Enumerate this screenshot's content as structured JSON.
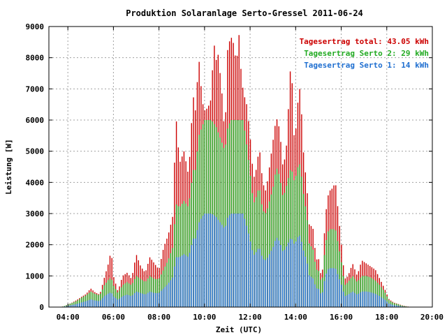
{
  "chart_data": {
    "type": "bar",
    "title": "Produktion Solaranlage Serto-Gressel 2011-06-24",
    "xlabel": "Zeit (UTC)",
    "ylabel": "Leistung [W]",
    "xlim": [
      3.167,
      20.0
    ],
    "ylim": [
      0,
      9000
    ],
    "grid": true,
    "legend_position": "top-right",
    "yticks": [
      {
        "value": 0,
        "label": "0"
      },
      {
        "value": 1000,
        "label": "1000"
      },
      {
        "value": 2000,
        "label": "2000"
      },
      {
        "value": 3000,
        "label": "3000"
      },
      {
        "value": 4000,
        "label": "4000"
      },
      {
        "value": 5000,
        "label": "5000"
      },
      {
        "value": 6000,
        "label": "6000"
      },
      {
        "value": 7000,
        "label": "7000"
      },
      {
        "value": 8000,
        "label": "8000"
      },
      {
        "value": 9000,
        "label": "9000"
      }
    ],
    "xticks": [
      {
        "value": 4,
        "label": "04:00"
      },
      {
        "value": 6,
        "label": "06:00"
      },
      {
        "value": 8,
        "label": "08:00"
      },
      {
        "value": 10,
        "label": "10:00"
      },
      {
        "value": 12,
        "label": "12:00"
      },
      {
        "value": 14,
        "label": "14:00"
      },
      {
        "value": 16,
        "label": "16:00"
      },
      {
        "value": 18,
        "label": "18:00"
      },
      {
        "value": 20,
        "label": "20:00"
      }
    ],
    "legend": [
      {
        "label": "Tagesertrag total: 43.05 kWh",
        "color": "#cc0000"
      },
      {
        "label": "Tagesertrag Serto 2: 29 kWh",
        "color": "#22aa22"
      },
      {
        "label": "Tagesertrag Serto 1: 14 kWh",
        "color": "#1f6fd0"
      }
    ],
    "series": [
      {
        "name": "Tagesertrag total: 43.05 kWh",
        "color": "#cc0000",
        "points": [
          [
            3.6,
            0
          ],
          [
            3.8,
            20
          ],
          [
            4.0,
            80
          ],
          [
            4.2,
            150
          ],
          [
            4.4,
            230
          ],
          [
            4.6,
            330
          ],
          [
            4.8,
            420
          ],
          [
            5.0,
            600
          ],
          [
            5.2,
            470
          ],
          [
            5.4,
            400
          ],
          [
            5.6,
            940
          ],
          [
            5.8,
            1450
          ],
          [
            5.9,
            1850
          ],
          [
            6.0,
            1000
          ],
          [
            6.2,
            500
          ],
          [
            6.4,
            1000
          ],
          [
            6.6,
            1100
          ],
          [
            6.8,
            900
          ],
          [
            7.0,
            1700
          ],
          [
            7.2,
            1300
          ],
          [
            7.4,
            1100
          ],
          [
            7.6,
            1600
          ],
          [
            7.8,
            1400
          ],
          [
            8.0,
            1200
          ],
          [
            8.2,
            1900
          ],
          [
            8.4,
            2300
          ],
          [
            8.6,
            2900
          ],
          [
            8.75,
            6100
          ],
          [
            8.9,
            4600
          ],
          [
            9.1,
            5000
          ],
          [
            9.3,
            4200
          ],
          [
            9.5,
            6800
          ],
          [
            9.6,
            6300
          ],
          [
            9.75,
            8000
          ],
          [
            9.9,
            6600
          ],
          [
            10.0,
            6300
          ],
          [
            10.15,
            6400
          ],
          [
            10.3,
            6700
          ],
          [
            10.4,
            8600
          ],
          [
            10.5,
            7900
          ],
          [
            10.6,
            8100
          ],
          [
            10.75,
            7000
          ],
          [
            10.9,
            5400
          ],
          [
            11.0,
            8200
          ],
          [
            11.15,
            8700
          ],
          [
            11.3,
            8400
          ],
          [
            11.4,
            7700
          ],
          [
            11.5,
            8900
          ],
          [
            11.6,
            7600
          ],
          [
            11.7,
            6900
          ],
          [
            11.85,
            6500
          ],
          [
            12.0,
            5500
          ],
          [
            12.15,
            4100
          ],
          [
            12.3,
            4500
          ],
          [
            12.4,
            5200
          ],
          [
            12.55,
            4000
          ],
          [
            12.7,
            3700
          ],
          [
            12.85,
            4500
          ],
          [
            13.0,
            5300
          ],
          [
            13.15,
            6100
          ],
          [
            13.3,
            5700
          ],
          [
            13.45,
            4400
          ],
          [
            13.6,
            5200
          ],
          [
            13.8,
            8100
          ],
          [
            13.95,
            5100
          ],
          [
            14.1,
            6600
          ],
          [
            14.2,
            7100
          ],
          [
            14.35,
            4900
          ],
          [
            14.5,
            3800
          ],
          [
            14.6,
            2600
          ],
          [
            14.75,
            2600
          ],
          [
            14.9,
            1500
          ],
          [
            15.0,
            1600
          ],
          [
            15.15,
            800
          ],
          [
            15.3,
            2900
          ],
          [
            15.45,
            3700
          ],
          [
            15.6,
            3800
          ],
          [
            15.75,
            4000
          ],
          [
            15.9,
            2800
          ],
          [
            16.0,
            2100
          ],
          [
            16.15,
            900
          ],
          [
            16.3,
            1000
          ],
          [
            16.5,
            1400
          ],
          [
            16.7,
            1000
          ],
          [
            16.9,
            1500
          ],
          [
            17.1,
            1400
          ],
          [
            17.3,
            1300
          ],
          [
            17.5,
            1200
          ],
          [
            17.7,
            900
          ],
          [
            17.9,
            600
          ],
          [
            18.1,
            250
          ],
          [
            18.3,
            150
          ],
          [
            18.5,
            100
          ],
          [
            18.7,
            50
          ],
          [
            18.9,
            20
          ],
          [
            19.1,
            0
          ]
        ]
      },
      {
        "name": "Tagesertrag Serto 2: 29 kWh",
        "color": "#22aa22",
        "points": [
          [
            3.6,
            0
          ],
          [
            3.8,
            20
          ],
          [
            4.0,
            80
          ],
          [
            4.2,
            140
          ],
          [
            4.4,
            200
          ],
          [
            4.6,
            300
          ],
          [
            4.8,
            380
          ],
          [
            5.0,
            500
          ],
          [
            5.2,
            420
          ],
          [
            5.4,
            380
          ],
          [
            5.6,
            700
          ],
          [
            5.8,
            900
          ],
          [
            5.9,
            950
          ],
          [
            6.0,
            700
          ],
          [
            6.2,
            450
          ],
          [
            6.4,
            700
          ],
          [
            6.6,
            800
          ],
          [
            6.8,
            700
          ],
          [
            7.0,
            1000
          ],
          [
            7.2,
            900
          ],
          [
            7.4,
            800
          ],
          [
            7.6,
            1000
          ],
          [
            7.8,
            900
          ],
          [
            8.0,
            900
          ],
          [
            8.2,
            1200
          ],
          [
            8.4,
            1500
          ],
          [
            8.6,
            1900
          ],
          [
            8.75,
            3300
          ],
          [
            8.9,
            3200
          ],
          [
            9.1,
            3400
          ],
          [
            9.3,
            3200
          ],
          [
            9.5,
            4400
          ],
          [
            9.6,
            4400
          ],
          [
            9.75,
            5500
          ],
          [
            9.9,
            5800
          ],
          [
            10.0,
            6000
          ],
          [
            10.15,
            6000
          ],
          [
            10.3,
            6000
          ],
          [
            10.4,
            5900
          ],
          [
            10.5,
            5800
          ],
          [
            10.6,
            5600
          ],
          [
            10.75,
            5300
          ],
          [
            10.9,
            5000
          ],
          [
            11.0,
            5700
          ],
          [
            11.15,
            6000
          ],
          [
            11.3,
            6000
          ],
          [
            11.4,
            6000
          ],
          [
            11.5,
            6000
          ],
          [
            11.6,
            6000
          ],
          [
            11.7,
            6000
          ],
          [
            11.85,
            5200
          ],
          [
            12.0,
            4300
          ],
          [
            12.15,
            3300
          ],
          [
            12.3,
            3600
          ],
          [
            12.4,
            3900
          ],
          [
            12.55,
            3100
          ],
          [
            12.7,
            3000
          ],
          [
            12.85,
            3400
          ],
          [
            13.0,
            3800
          ],
          [
            13.15,
            4500
          ],
          [
            13.3,
            4200
          ],
          [
            13.45,
            3500
          ],
          [
            13.6,
            3900
          ],
          [
            13.8,
            4500
          ],
          [
            13.95,
            4000
          ],
          [
            14.1,
            4500
          ],
          [
            14.2,
            4600
          ],
          [
            14.35,
            3600
          ],
          [
            14.5,
            2900
          ],
          [
            14.6,
            2000
          ],
          [
            14.75,
            1900
          ],
          [
            14.9,
            1200
          ],
          [
            15.0,
            1200
          ],
          [
            15.15,
            700
          ],
          [
            15.3,
            2000
          ],
          [
            15.45,
            2500
          ],
          [
            15.6,
            2500
          ],
          [
            15.75,
            2500
          ],
          [
            15.9,
            1900
          ],
          [
            16.0,
            1500
          ],
          [
            16.15,
            700
          ],
          [
            16.3,
            800
          ],
          [
            16.5,
            1000
          ],
          [
            16.7,
            800
          ],
          [
            16.9,
            1000
          ],
          [
            17.1,
            1000
          ],
          [
            17.3,
            950
          ],
          [
            17.5,
            850
          ],
          [
            17.7,
            700
          ],
          [
            17.9,
            500
          ],
          [
            18.1,
            220
          ],
          [
            18.3,
            130
          ],
          [
            18.5,
            90
          ],
          [
            18.7,
            40
          ],
          [
            18.9,
            15
          ],
          [
            19.1,
            0
          ]
        ]
      },
      {
        "name": "Tagesertrag Serto 1: 14 kWh",
        "color": "#1f6fd0",
        "points": [
          [
            3.6,
            0
          ],
          [
            3.8,
            10
          ],
          [
            4.0,
            40
          ],
          [
            4.2,
            70
          ],
          [
            4.4,
            100
          ],
          [
            4.6,
            150
          ],
          [
            4.8,
            190
          ],
          [
            5.0,
            250
          ],
          [
            5.2,
            210
          ],
          [
            5.4,
            190
          ],
          [
            5.6,
            350
          ],
          [
            5.8,
            450
          ],
          [
            5.9,
            480
          ],
          [
            6.0,
            350
          ],
          [
            6.2,
            230
          ],
          [
            6.4,
            350
          ],
          [
            6.6,
            400
          ],
          [
            6.8,
            350
          ],
          [
            7.0,
            500
          ],
          [
            7.2,
            450
          ],
          [
            7.4,
            400
          ],
          [
            7.6,
            500
          ],
          [
            7.8,
            450
          ],
          [
            8.0,
            450
          ],
          [
            8.2,
            600
          ],
          [
            8.4,
            750
          ],
          [
            8.6,
            950
          ],
          [
            8.75,
            1600
          ],
          [
            8.9,
            1600
          ],
          [
            9.1,
            1700
          ],
          [
            9.3,
            1600
          ],
          [
            9.5,
            2200
          ],
          [
            9.6,
            2200
          ],
          [
            9.75,
            2700
          ],
          [
            9.9,
            2900
          ],
          [
            10.0,
            3000
          ],
          [
            10.15,
            3000
          ],
          [
            10.3,
            3000
          ],
          [
            10.4,
            2950
          ],
          [
            10.5,
            2900
          ],
          [
            10.6,
            2800
          ],
          [
            10.75,
            2650
          ],
          [
            10.9,
            2500
          ],
          [
            11.0,
            2850
          ],
          [
            11.15,
            3000
          ],
          [
            11.3,
            3000
          ],
          [
            11.4,
            3000
          ],
          [
            11.5,
            3000
          ],
          [
            11.6,
            3000
          ],
          [
            11.7,
            3000
          ],
          [
            11.85,
            2600
          ],
          [
            12.0,
            2150
          ],
          [
            12.15,
            1650
          ],
          [
            12.3,
            1800
          ],
          [
            12.4,
            1950
          ],
          [
            12.55,
            1550
          ],
          [
            12.7,
            1500
          ],
          [
            12.85,
            1700
          ],
          [
            13.0,
            1900
          ],
          [
            13.15,
            2250
          ],
          [
            13.3,
            2100
          ],
          [
            13.45,
            1750
          ],
          [
            13.6,
            1950
          ],
          [
            13.8,
            2250
          ],
          [
            13.95,
            2000
          ],
          [
            14.1,
            2250
          ],
          [
            14.2,
            2300
          ],
          [
            14.35,
            1800
          ],
          [
            14.5,
            1450
          ],
          [
            14.6,
            1000
          ],
          [
            14.75,
            950
          ],
          [
            14.9,
            600
          ],
          [
            15.0,
            600
          ],
          [
            15.15,
            350
          ],
          [
            15.3,
            1000
          ],
          [
            15.45,
            1250
          ],
          [
            15.6,
            1250
          ],
          [
            15.75,
            1250
          ],
          [
            15.9,
            950
          ],
          [
            16.0,
            750
          ],
          [
            16.15,
            350
          ],
          [
            16.3,
            400
          ],
          [
            16.5,
            500
          ],
          [
            16.7,
            400
          ],
          [
            16.9,
            500
          ],
          [
            17.1,
            500
          ],
          [
            17.3,
            475
          ],
          [
            17.5,
            425
          ],
          [
            17.7,
            350
          ],
          [
            17.9,
            250
          ],
          [
            18.1,
            110
          ],
          [
            18.3,
            65
          ],
          [
            18.5,
            45
          ],
          [
            18.7,
            20
          ],
          [
            18.9,
            8
          ],
          [
            19.1,
            0
          ]
        ]
      }
    ]
  }
}
